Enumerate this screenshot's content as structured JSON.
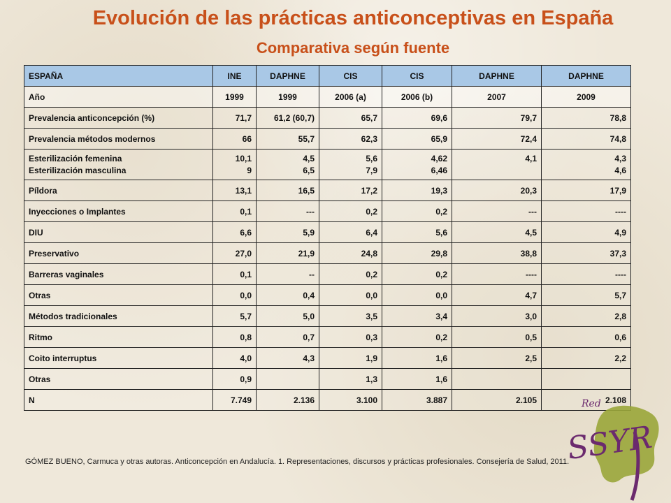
{
  "title": "Evolución de las prácticas anticonceptivas en España",
  "subtitle": "Comparativa según fuente",
  "table": {
    "header": [
      "ESPAÑA",
      "INE",
      "DAPHNE",
      "CIS",
      "CIS",
      "DAPHNE",
      "DAPHNE"
    ],
    "years": [
      "Año",
      "1999",
      "1999",
      "2006 (a)",
      "2006 (b)",
      "2007",
      "2009"
    ],
    "rows": [
      {
        "label": "Prevalencia anticoncepción (%)",
        "values": [
          "71,7",
          "61,2 (60,7)",
          "65,7",
          "69,6",
          "79,7",
          "78,8"
        ]
      },
      {
        "label": "Prevalencia métodos modernos",
        "values": [
          "66",
          "55,7",
          "62,3",
          "65,9",
          "72,4",
          "74,8"
        ]
      },
      {
        "label": "Esterilización femenina",
        "label2": "Esterilización masculina",
        "values": [
          "10,1",
          "4,5",
          "5,6",
          "4,62",
          "4,1",
          "4,3"
        ],
        "values2": [
          "9",
          "6,5",
          "7,9",
          "6,46",
          "",
          "4,6"
        ]
      },
      {
        "label": "Píldora",
        "values": [
          "13,1",
          "16,5",
          "17,2",
          "19,3",
          "20,3",
          "17,9"
        ]
      },
      {
        "label": "Inyecciones o Implantes",
        "values": [
          "0,1",
          "---",
          "0,2",
          "0,2",
          "---",
          "----"
        ]
      },
      {
        "label": "DIU",
        "values": [
          "6,6",
          "5,9",
          "6,4",
          "5,6",
          "4,5",
          "4,9"
        ]
      },
      {
        "label": "Preservativo",
        "values": [
          "27,0",
          "21,9",
          "24,8",
          "29,8",
          "38,8",
          "37,3"
        ]
      },
      {
        "label": "Barreras vaginales",
        "values": [
          "0,1",
          "--",
          "0,2",
          "0,2",
          "----",
          "----"
        ]
      },
      {
        "label": "Otras",
        "values": [
          "0,0",
          "0,4",
          "0,0",
          "0,0",
          "4,7",
          "5,7"
        ]
      },
      {
        "label": "Métodos tradicionales",
        "values": [
          "5,7",
          "5,0",
          "3,5",
          "3,4",
          "3,0",
          "2,8"
        ]
      },
      {
        "label": "Ritmo",
        "values": [
          "0,8",
          "0,7",
          "0,3",
          "0,2",
          "0,5",
          "0,6"
        ]
      },
      {
        "label": "Coito interruptus",
        "values": [
          "4,0",
          "4,3",
          "1,9",
          "1,6",
          "2,5",
          "2,2"
        ]
      },
      {
        "label": "Otras",
        "values": [
          "0,9",
          "",
          "1,3",
          "1,6",
          "",
          ""
        ]
      },
      {
        "label": "N",
        "values": [
          "7.749",
          "2.136",
          "3.100",
          "3.887",
          "2.105",
          "2.108"
        ]
      }
    ]
  },
  "footnote": "GÓMEZ BUENO, Carmuca y otras autoras. Anticoncepción en Andalucía. 1. Representaciones, discursos y prácticas profesionales. Consejería de Salud, 2011.",
  "logo": {
    "top_text": "Red",
    "main_text": "SSYR"
  },
  "colors": {
    "title": "#c8501a",
    "header_bg": "#a9c8e6",
    "logo_green": "#9aa63a",
    "logo_purple": "#6b2a6e"
  }
}
